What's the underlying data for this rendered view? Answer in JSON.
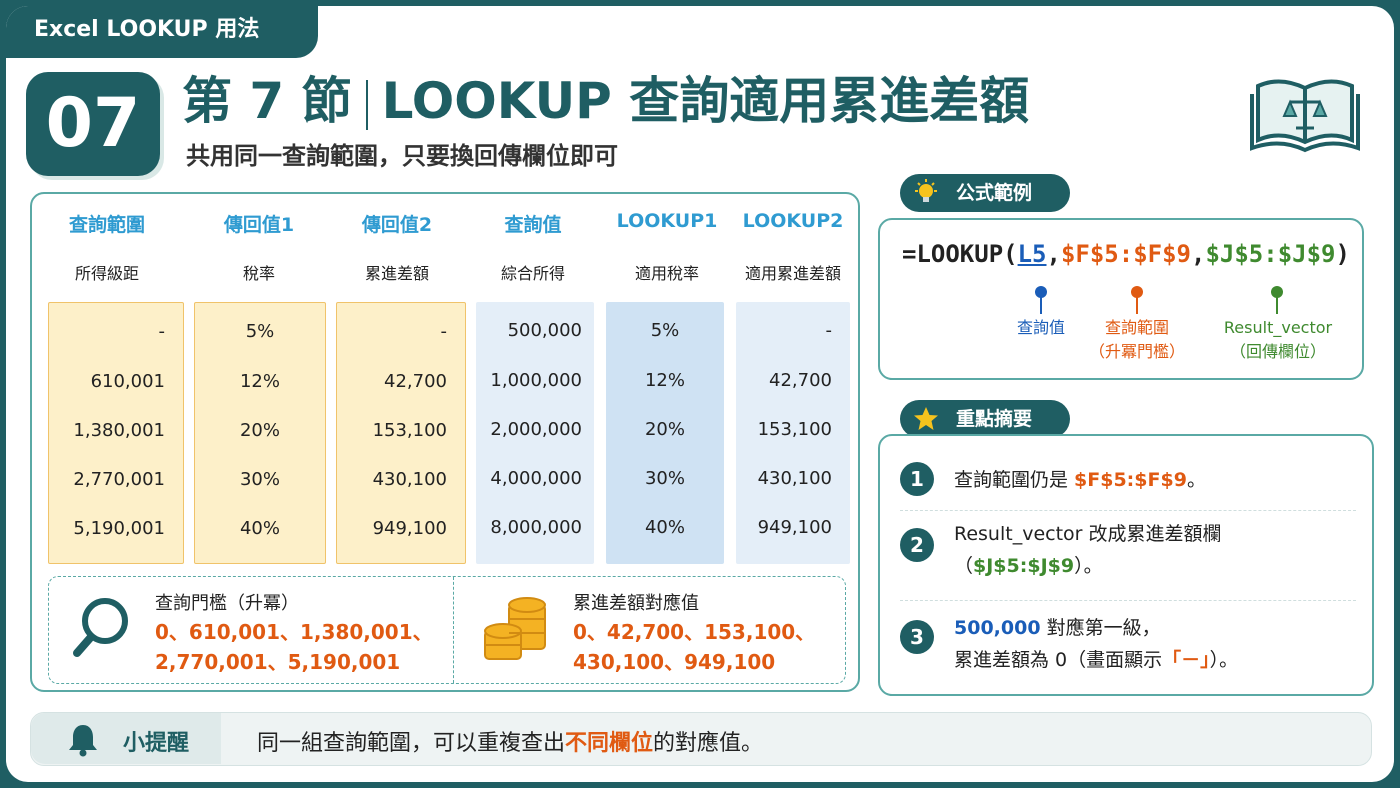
{
  "header": {
    "tag": "Excel LOOKUP 用法",
    "section_number": "07",
    "title_prefix": "第 7 節",
    "title_main": "LOOKUP 查詢適用累進差額",
    "subtitle": "共用同一查詢範圍，只要換回傳欄位即可"
  },
  "table": {
    "columns": [
      {
        "header": "查詢範圍",
        "sub": "所得級距",
        "values": [
          "-",
          "610,001",
          "1,380,001",
          "2,770,001",
          "5,190,001"
        ]
      },
      {
        "header": "傳回值1",
        "sub": "稅率",
        "values": [
          "5%",
          "12%",
          "20%",
          "30%",
          "40%"
        ]
      },
      {
        "header": "傳回值2",
        "sub": "累進差額",
        "values": [
          "-",
          "42,700",
          "153,100",
          "430,100",
          "949,100"
        ]
      },
      {
        "header": "查詢值",
        "sub": "綜合所得",
        "values": [
          "500,000",
          "1,000,000",
          "2,000,000",
          "4,000,000",
          "8,000,000"
        ]
      },
      {
        "header": "LOOKUP1",
        "sub": "適用稅率",
        "values": [
          "5%",
          "12%",
          "20%",
          "30%",
          "40%"
        ]
      },
      {
        "header": "LOOKUP2",
        "sub": "適用累進差額",
        "values": [
          "-",
          "42,700",
          "153,100",
          "430,100",
          "949,100"
        ]
      }
    ],
    "threshold_title": "查詢門檻（升冪）",
    "threshold_line1": "0、610,001、1,380,001、",
    "threshold_line2": "2,770,001、5,190,001",
    "diff_title": "累進差額對應值",
    "diff_line1": "0、42,700、153,100、",
    "diff_line2": "430,100、949,100"
  },
  "formula": {
    "pill": "公式範例",
    "prefix": "=LOOKUP(",
    "arg1": "L5",
    "comma1": ",",
    "arg2": "$F$5:$F$9",
    "comma2": ",",
    "arg3": "$J$5:$J$9",
    "suffix": ")",
    "label1": "查詢值",
    "label2a": "查詢範圍",
    "label2b": "（升冪門檻）",
    "label3a": "Result_vector",
    "label3b": "（回傳欄位）",
    "colors": {
      "blue": "#1a5db8",
      "orange": "#e05a12",
      "green": "#3f8a2f"
    }
  },
  "key_points": {
    "pill": "重點摘要",
    "items": [
      {
        "num": "1",
        "text_a": "查詢範圍仍是 ",
        "hl": "$F$5:$F$9",
        "text_b": "。"
      },
      {
        "num": "2",
        "line1": "Result_vector 改成累進差額欄",
        "line2_a": "（",
        "hl": "$J$5:$J$9",
        "line2_b": "）。"
      },
      {
        "num": "3",
        "hl": "500,000",
        "line1_b": " 對應第一級，",
        "line2_a": "累進差額為 0（畫面顯示",
        "hl2": "「－」",
        "line2_b": "）。"
      }
    ]
  },
  "tip": {
    "label": "小提醒",
    "text_a": "同一組查詢範圍，可以重複查出",
    "hl": "不同欄位",
    "text_b": "的對應值。"
  },
  "icons": [
    "book-scale-icon",
    "lightbulb-icon",
    "star-icon",
    "magnifier-icon",
    "coins-icon",
    "bell-icon"
  ]
}
